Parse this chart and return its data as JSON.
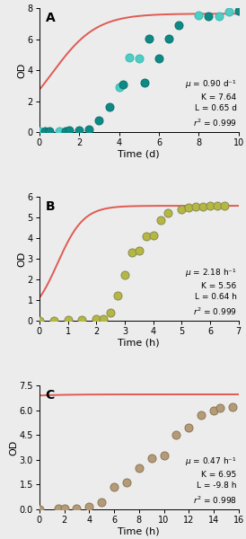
{
  "panel_A": {
    "label": "A",
    "xlabel": "Time (d)",
    "ylabel": "OD",
    "xlim": [
      0,
      10
    ],
    "ylim": [
      0,
      8.0
    ],
    "yticks": [
      0.0,
      2.0,
      4.0,
      6.0,
      8.0
    ],
    "xticks": [
      0,
      2,
      4,
      6,
      8,
      10
    ],
    "x_data": [
      0.0,
      0.3,
      0.5,
      1.0,
      1.3,
      1.5,
      2.0,
      2.5,
      3.0,
      3.5,
      4.0,
      4.2,
      4.5,
      5.0,
      5.3,
      5.5,
      6.0,
      6.5,
      7.0,
      8.0,
      8.5,
      9.0,
      9.5,
      10.0
    ],
    "y_data": [
      0.04,
      0.07,
      0.07,
      0.08,
      0.08,
      0.1,
      0.12,
      0.2,
      0.75,
      1.65,
      2.9,
      3.1,
      4.8,
      4.75,
      3.2,
      6.05,
      4.75,
      6.05,
      6.9,
      7.55,
      7.5,
      7.5,
      7.75,
      7.8
    ],
    "marker_face_dark": "#0e8a84",
    "marker_face_light": "#4ecdc4",
    "marker_colors": [
      1,
      0,
      0,
      1,
      0,
      0,
      0,
      0,
      0,
      0,
      1,
      0,
      1,
      1,
      0,
      0,
      0,
      0,
      0,
      1,
      0,
      1,
      1,
      0
    ],
    "curve_color": "#e05a52",
    "mu": "0.90 d⁻¹",
    "K": "7.64",
    "L": "0.65 d",
    "r2": "0.999",
    "params": {
      "mu": 0.9,
      "K": 7.64,
      "L": 0.65
    }
  },
  "panel_B": {
    "label": "B",
    "xlabel": "Time (h)",
    "ylabel": "OD",
    "xlim": [
      0,
      7
    ],
    "ylim": [
      0,
      6.0
    ],
    "yticks": [
      0.0,
      1.0,
      2.0,
      3.0,
      4.0,
      5.0,
      6.0
    ],
    "xticks": [
      0,
      1,
      2,
      3,
      4,
      5,
      6,
      7
    ],
    "x_data": [
      0.0,
      0.5,
      1.0,
      1.5,
      2.0,
      2.25,
      2.5,
      2.75,
      3.0,
      3.25,
      3.5,
      3.75,
      4.0,
      4.25,
      4.5,
      5.0,
      5.25,
      5.5,
      5.75,
      6.0,
      6.25,
      6.5
    ],
    "y_data": [
      0.02,
      0.02,
      0.03,
      0.04,
      0.07,
      0.1,
      0.38,
      1.2,
      2.2,
      3.3,
      3.4,
      4.1,
      4.15,
      4.85,
      5.2,
      5.38,
      5.48,
      5.52,
      5.54,
      5.55,
      5.55,
      5.58
    ],
    "marker_face": "#b5b840",
    "marker_edge": "#888855",
    "curve_color": "#e05a52",
    "mu": "2.18 h⁻¹",
    "K": "5.56",
    "L": "0.64 h",
    "r2": "0.999",
    "params": {
      "mu": 2.18,
      "K": 5.56,
      "L": 0.64
    }
  },
  "panel_C": {
    "label": "C",
    "xlabel": "Time (h)",
    "ylabel": "OD",
    "xlim": [
      0,
      16
    ],
    "ylim": [
      0,
      7.5
    ],
    "yticks": [
      0.0,
      1.5,
      3.0,
      4.5,
      6.0,
      7.5
    ],
    "xticks": [
      0,
      2,
      4,
      6,
      8,
      10,
      12,
      14,
      16
    ],
    "x_data": [
      0.0,
      1.5,
      2.0,
      3.0,
      4.0,
      5.0,
      6.0,
      7.0,
      8.0,
      9.0,
      10.0,
      11.0,
      12.0,
      13.0,
      14.0,
      14.5,
      15.5
    ],
    "y_data": [
      0.02,
      0.03,
      0.06,
      0.08,
      0.18,
      0.45,
      1.38,
      1.62,
      2.48,
      3.1,
      3.28,
      4.52,
      4.92,
      5.7,
      5.98,
      6.13,
      6.18
    ],
    "marker_face": "#b59a78",
    "marker_edge": "#887755",
    "curve_color": "#e05a52",
    "mu": "0.47 h⁻¹",
    "K": "6.95",
    "L": "-9.8 h",
    "r2": "0.998",
    "params": {
      "mu": 0.47,
      "K": 6.95,
      "L": -9.8
    }
  },
  "fig_bg": "#ececec",
  "marker_size": 6.5,
  "marker_edge_color_A_dark": "#0e8a84",
  "marker_edge_color_A_light": "#3ab8b0",
  "marker_edge_color_BC": "#9a9060",
  "curve_linewidth": 1.4,
  "annotation_fontsize": 6.5,
  "tick_fontsize": 7,
  "label_fontsize": 8
}
